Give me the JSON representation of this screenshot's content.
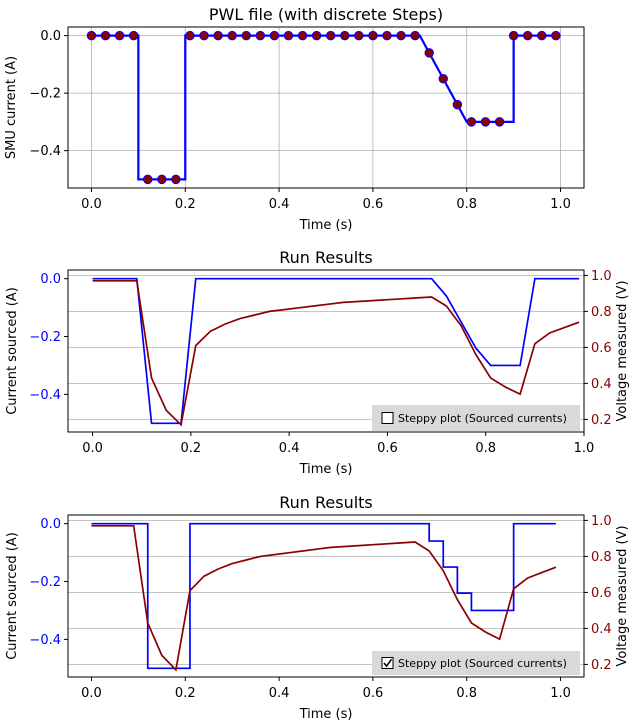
{
  "colors": {
    "current": "#0000ff",
    "voltage": "#8b0000",
    "marker_fill": "#8b0000",
    "marker_edge": "#0000ff",
    "grid": "#b0b0b0",
    "checkbox_panel": "#d9d9d9"
  },
  "chart_data": [
    {
      "type": "line",
      "title": "PWL file (with discrete Steps)",
      "xlabel": "Time (s)",
      "ylabel": "SMU current (A)",
      "xlim": [
        -0.05,
        1.05
      ],
      "ylim": [
        -0.53,
        0.03
      ],
      "xticks": [
        "0.0",
        "0.2",
        "0.4",
        "0.6",
        "0.8",
        "1.0"
      ],
      "yticks": [
        "0.0",
        "−0.2",
        "−0.4"
      ],
      "grid": true,
      "series": [
        {
          "kind": "steps-with-markers",
          "x": [
            0.0,
            0.1,
            0.1,
            0.2,
            0.2,
            0.7,
            0.8,
            0.9,
            0.9,
            1.0
          ],
          "y": [
            0.0,
            0.0,
            -0.5,
            -0.5,
            0.0,
            0.0,
            -0.3,
            -0.3,
            0.0,
            0.0
          ],
          "markers_x": [
            0.0,
            0.03,
            0.06,
            0.09,
            0.12,
            0.15,
            0.18,
            0.21,
            0.24,
            0.27,
            0.3,
            0.33,
            0.36,
            0.39,
            0.42,
            0.45,
            0.48,
            0.51,
            0.54,
            0.57,
            0.6,
            0.63,
            0.66,
            0.69,
            0.72,
            0.75,
            0.78,
            0.81,
            0.84,
            0.87,
            0.9,
            0.93,
            0.96,
            0.99
          ],
          "markers_y": [
            0.0,
            0.0,
            0.0,
            0.0,
            -0.5,
            -0.5,
            -0.5,
            0.0,
            0.0,
            0.0,
            0.0,
            0.0,
            0.0,
            0.0,
            0.0,
            0.0,
            0.0,
            0.0,
            0.0,
            0.0,
            0.0,
            0.0,
            0.0,
            0.0,
            -0.06,
            -0.15,
            -0.24,
            -0.3,
            -0.3,
            -0.3,
            0.0,
            0.0,
            0.0,
            0.0
          ]
        }
      ]
    },
    {
      "type": "line",
      "title": "Run Results",
      "xlabel": "Time (s)",
      "ylabel": "Current sourced (A)",
      "y2label": "Voltage measured (V)",
      "xlim": [
        -0.05,
        1.0
      ],
      "ylim": [
        -0.53,
        0.03
      ],
      "y2lim": [
        0.13,
        1.03
      ],
      "xticks": [
        "0.0",
        "0.2",
        "0.4",
        "0.6",
        "0.8",
        "1.0"
      ],
      "yticks": [
        "0.0",
        "−0.2",
        "−0.4"
      ],
      "y2ticks": [
        "0.2",
        "0.4",
        "0.6",
        "0.8",
        "1.0"
      ],
      "grid": "y2",
      "checkbox": {
        "label": "Steppy plot (Sourced currents)",
        "checked": false
      },
      "series": [
        {
          "axis": "left",
          "kind": "line",
          "x": [
            0.0,
            0.09,
            0.12,
            0.15,
            0.18,
            0.21,
            0.24,
            0.27,
            0.3,
            0.33,
            0.36,
            0.39,
            0.42,
            0.45,
            0.48,
            0.51,
            0.54,
            0.57,
            0.6,
            0.63,
            0.66,
            0.69,
            0.72,
            0.75,
            0.78,
            0.81,
            0.84,
            0.87,
            0.9,
            0.93,
            0.96,
            0.99
          ],
          "y": [
            0.0,
            0.0,
            -0.5,
            -0.5,
            -0.5,
            0.0,
            0.0,
            0.0,
            0.0,
            0.0,
            0.0,
            0.0,
            0.0,
            0.0,
            0.0,
            0.0,
            0.0,
            0.0,
            0.0,
            0.0,
            0.0,
            0.0,
            -0.06,
            -0.15,
            -0.24,
            -0.3,
            -0.3,
            -0.3,
            0.0,
            0.0,
            0.0,
            0.0
          ]
        },
        {
          "axis": "right",
          "kind": "line",
          "x": [
            0.0,
            0.09,
            0.12,
            0.15,
            0.18,
            0.21,
            0.24,
            0.27,
            0.3,
            0.33,
            0.36,
            0.39,
            0.42,
            0.45,
            0.48,
            0.51,
            0.54,
            0.57,
            0.6,
            0.63,
            0.66,
            0.69,
            0.72,
            0.75,
            0.78,
            0.81,
            0.84,
            0.87,
            0.9,
            0.93,
            0.96,
            0.99
          ],
          "y": [
            0.97,
            0.97,
            0.43,
            0.25,
            0.17,
            0.61,
            0.69,
            0.73,
            0.76,
            0.78,
            0.8,
            0.81,
            0.82,
            0.83,
            0.84,
            0.85,
            0.855,
            0.86,
            0.865,
            0.87,
            0.875,
            0.88,
            0.83,
            0.72,
            0.56,
            0.43,
            0.38,
            0.34,
            0.62,
            0.68,
            0.71,
            0.74
          ]
        }
      ]
    },
    {
      "type": "line",
      "title": "Run Results",
      "xlabel": "Time (s)",
      "ylabel": "Current sourced (A)",
      "y2label": "Voltage measured (V)",
      "xlim": [
        -0.05,
        1.05
      ],
      "ylim": [
        -0.53,
        0.03
      ],
      "y2lim": [
        0.13,
        1.03
      ],
      "xticks": [
        "0.0",
        "0.2",
        "0.4",
        "0.6",
        "0.8",
        "1.0"
      ],
      "yticks": [
        "0.0",
        "−0.2",
        "−0.4"
      ],
      "y2ticks": [
        "0.2",
        "0.4",
        "0.6",
        "0.8",
        "1.0"
      ],
      "grid": "y2",
      "checkbox": {
        "label": "Steppy plot (Sourced currents)",
        "checked": true
      },
      "series": [
        {
          "axis": "left",
          "kind": "steps",
          "x": [
            0.0,
            0.12,
            0.12,
            0.21,
            0.21,
            0.72,
            0.72,
            0.75,
            0.75,
            0.78,
            0.78,
            0.81,
            0.81,
            0.9,
            0.9,
            0.99
          ],
          "y": [
            0.0,
            0.0,
            -0.5,
            -0.5,
            0.0,
            0.0,
            -0.06,
            -0.06,
            -0.15,
            -0.15,
            -0.24,
            -0.24,
            -0.3,
            -0.3,
            0.0,
            0.0
          ]
        },
        {
          "axis": "right",
          "kind": "line",
          "x": [
            0.0,
            0.09,
            0.12,
            0.15,
            0.18,
            0.21,
            0.24,
            0.27,
            0.3,
            0.33,
            0.36,
            0.39,
            0.42,
            0.45,
            0.48,
            0.51,
            0.54,
            0.57,
            0.6,
            0.63,
            0.66,
            0.69,
            0.72,
            0.75,
            0.78,
            0.81,
            0.84,
            0.87,
            0.9,
            0.93,
            0.96,
            0.99
          ],
          "y": [
            0.97,
            0.97,
            0.43,
            0.25,
            0.17,
            0.61,
            0.69,
            0.73,
            0.76,
            0.78,
            0.8,
            0.81,
            0.82,
            0.83,
            0.84,
            0.85,
            0.855,
            0.86,
            0.865,
            0.87,
            0.875,
            0.88,
            0.83,
            0.72,
            0.56,
            0.43,
            0.38,
            0.34,
            0.62,
            0.68,
            0.71,
            0.74
          ]
        }
      ]
    }
  ]
}
